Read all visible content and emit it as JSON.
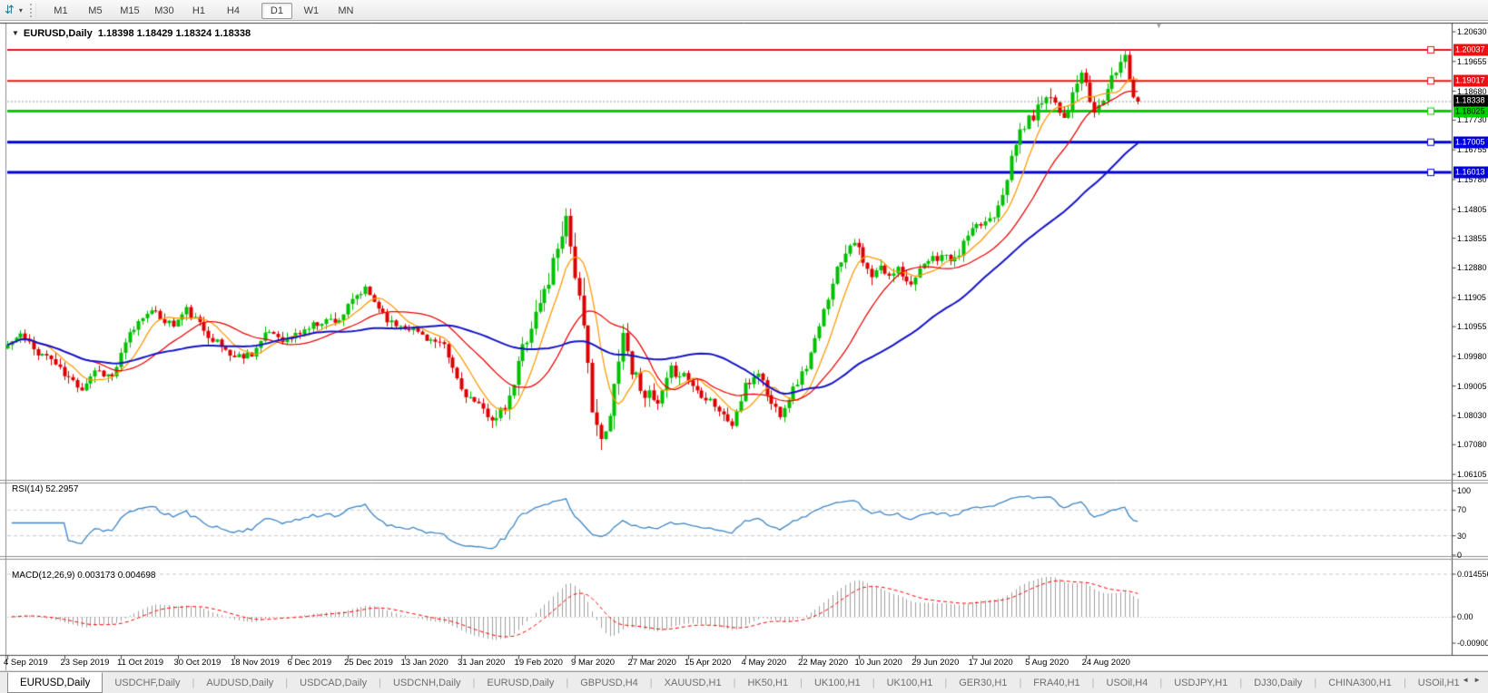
{
  "toolbar": {
    "timeframes": [
      "M1",
      "M5",
      "M15",
      "M30",
      "H1",
      "H4",
      "D1",
      "W1",
      "MN"
    ],
    "active_timeframe": "D1"
  },
  "icons": {
    "chart_tool": "⇵",
    "dropdown": "▾",
    "title_caret": "▼",
    "shift_marker": "▼",
    "tab_prev": "◄",
    "tab_next": "►"
  },
  "chart": {
    "title": "EURUSD,Daily",
    "ohlc": "1.18398 1.18429 1.18324 1.18338"
  },
  "price_axis": {
    "max": 1.2063,
    "min": 1.06105,
    "ticks": [
      "1.20630",
      "1.19655",
      "1.18680",
      "1.17730",
      "1.16755",
      "1.15780",
      "1.14805",
      "1.13855",
      "1.12880",
      "1.11905",
      "1.10955",
      "1.09980",
      "1.09005",
      "1.08030",
      "1.07080",
      "1.06105"
    ],
    "current_price": "1.18338",
    "current_price_bg": "#000000",
    "current_price_fg": "#ffffff"
  },
  "levels": [
    {
      "label": "1.20037",
      "price": 1.20037,
      "color": "#ee1111",
      "text_color": "#ffffff",
      "weight": 2
    },
    {
      "label": "1.19017",
      "price": 1.19017,
      "color": "#ee1111",
      "text_color": "#ffffff",
      "weight": 2
    },
    {
      "label": "1.18025",
      "price": 1.18025,
      "color": "#00d000",
      "text_color": "#000000",
      "weight": 3
    },
    {
      "label": "1.17005",
      "price": 1.17005,
      "color": "#0000dd",
      "text_color": "#ffffff",
      "weight": 3
    },
    {
      "label": "1.16013",
      "price": 1.16013,
      "color": "#0000dd",
      "text_color": "#ffffff",
      "weight": 3
    }
  ],
  "rsi_panel": {
    "label": "RSI(14) 52.2957",
    "period": 14,
    "value": 52.2957,
    "line_color": "#3d86c6",
    "ticks": [
      {
        "label": "100",
        "value": 100
      },
      {
        "label": "70",
        "value": 70
      },
      {
        "label": "30",
        "value": 30
      },
      {
        "label": "0",
        "value": 0
      }
    ],
    "dashed_levels": [
      70,
      30
    ]
  },
  "macd_panel": {
    "label": "MACD(12,26,9) 0.003173 0.004698",
    "fast": 12,
    "slow": 26,
    "signal": 9,
    "macd_value": 0.003173,
    "signal_value": 0.004698,
    "histogram_color": "#9f9f9f",
    "signal_color": "#ff0000",
    "ticks": [
      {
        "label": "0.014556",
        "value": 0.014556
      },
      {
        "label": "0.00",
        "value": 0
      },
      {
        "label": "-0.00900",
        "value": -0.009
      }
    ]
  },
  "dates": [
    "4 Sep 2019",
    "23 Sep 2019",
    "11 Oct 2019",
    "30 Oct 2019",
    "18 Nov 2019",
    "6 Dec 2019",
    "25 Dec 2019",
    "13 Jan 2020",
    "31 Jan 2020",
    "19 Feb 2020",
    "9 Mar 2020",
    "27 Mar 2020",
    "15 Apr 2020",
    "4 May 2020",
    "22 May 2020",
    "10 Jun 2020",
    "29 Jun 2020",
    "17 Jul 2020",
    "5 Aug 2020",
    "24 Aug 2020"
  ],
  "tabs": [
    {
      "label": "EURUSD,Daily",
      "active": true
    },
    {
      "label": "USDCHF,Daily",
      "active": false
    },
    {
      "label": "AUDUSD,Daily",
      "active": false
    },
    {
      "label": "USDCAD,Daily",
      "active": false
    },
    {
      "label": "USDCNH,Daily",
      "active": false
    },
    {
      "label": "EURUSD,Daily",
      "active": false
    },
    {
      "label": "GBPUSD,H4",
      "active": false
    },
    {
      "label": "XAUUSD,H1",
      "active": false
    },
    {
      "label": "HK50,H1",
      "active": false
    },
    {
      "label": "UK100,H1",
      "active": false
    },
    {
      "label": "UK100,H1",
      "active": false
    },
    {
      "label": "GER30,H1",
      "active": false
    },
    {
      "label": "FRA40,H1",
      "active": false
    },
    {
      "label": "USOil,H4",
      "active": false
    },
    {
      "label": "USDJPY,H1",
      "active": false
    },
    {
      "label": "DJ30,Daily",
      "active": false
    },
    {
      "label": "CHINA300,H1",
      "active": false
    },
    {
      "label": "USOil,H1",
      "active": false
    }
  ],
  "chart_data": {
    "type": "candlestick",
    "symbol": "EURUSD",
    "timeframe": "Daily",
    "current": {
      "open": 1.18398,
      "high": 1.18429,
      "low": 1.18324,
      "close": 1.18338
    },
    "bars": 260,
    "bars_per_date_tick": 13,
    "up_color": "#00c000",
    "down_color": "#dd0000",
    "moving_averages": [
      {
        "period": 8,
        "color": "#ff9900",
        "width": 1.25
      },
      {
        "period": 20,
        "color": "#ee0000",
        "width": 1.25
      },
      {
        "period": 45,
        "color": "#1414c8",
        "width": 2
      }
    ],
    "close_anchors": [
      [
        0,
        1.1035,
        1
      ],
      [
        3,
        1.107,
        1
      ],
      [
        6,
        1.102,
        1
      ],
      [
        10,
        1.099,
        1
      ],
      [
        13,
        1.0935,
        1
      ],
      [
        17,
        1.0895,
        1
      ],
      [
        20,
        1.0955,
        1
      ],
      [
        24,
        1.093,
        1
      ],
      [
        28,
        1.107,
        1
      ],
      [
        32,
        1.115,
        1
      ],
      [
        35,
        1.1125,
        1
      ],
      [
        38,
        1.11,
        1
      ],
      [
        41,
        1.115,
        1
      ],
      [
        45,
        1.1085,
        1
      ],
      [
        49,
        1.103,
        1
      ],
      [
        52,
        1.0995,
        1
      ],
      [
        56,
        1.101,
        1
      ],
      [
        60,
        1.108,
        1
      ],
      [
        64,
        1.105,
        1
      ],
      [
        68,
        1.1085,
        1
      ],
      [
        72,
        1.1115,
        1
      ],
      [
        76,
        1.112,
        1
      ],
      [
        80,
        1.1195,
        1
      ],
      [
        82,
        1.1215,
        1
      ],
      [
        85,
        1.116,
        1
      ],
      [
        88,
        1.1105,
        1
      ],
      [
        92,
        1.1095,
        1
      ],
      [
        96,
        1.106,
        1
      ],
      [
        100,
        1.1025,
        1
      ],
      [
        104,
        1.089,
        1
      ],
      [
        108,
        1.083,
        1
      ],
      [
        112,
        1.079,
        1.3
      ],
      [
        115,
        1.085,
        1.6
      ],
      [
        118,
        1.103,
        1.8
      ],
      [
        121,
        1.1135,
        2
      ],
      [
        124,
        1.125,
        2.2
      ],
      [
        127,
        1.142,
        2.5
      ],
      [
        128,
        1.1455,
        2.6
      ],
      [
        130,
        1.128,
        2.8
      ],
      [
        132,
        1.1065,
        2.8
      ],
      [
        134,
        1.085,
        2.6
      ],
      [
        136,
        1.0705,
        2.2
      ],
      [
        138,
        1.079,
        2.2
      ],
      [
        140,
        1.101,
        2.1
      ],
      [
        141,
        1.1075,
        2
      ],
      [
        143,
        1.0955,
        1.8
      ],
      [
        146,
        1.088,
        1.6
      ],
      [
        149,
        1.0835,
        1.4
      ],
      [
        152,
        1.095,
        1.3
      ],
      [
        155,
        1.094,
        1.2
      ],
      [
        158,
        1.0885,
        1.2
      ],
      [
        161,
        1.086,
        1.2
      ],
      [
        164,
        1.08,
        1.2
      ],
      [
        166,
        1.0775,
        1.2
      ],
      [
        169,
        1.0895,
        1.2
      ],
      [
        172,
        1.095,
        1.2
      ],
      [
        175,
        1.084,
        1.2
      ],
      [
        177,
        1.0815,
        1.2
      ],
      [
        180,
        1.089,
        1
      ],
      [
        183,
        1.0965,
        1
      ],
      [
        186,
        1.109,
        1
      ],
      [
        189,
        1.125,
        1.2
      ],
      [
        192,
        1.135,
        1.4
      ],
      [
        194,
        1.1385,
        1.3
      ],
      [
        196,
        1.13,
        1.2
      ],
      [
        198,
        1.1255,
        1.2
      ],
      [
        200,
        1.129,
        1
      ],
      [
        202,
        1.1255,
        1
      ],
      [
        204,
        1.13,
        1
      ],
      [
        206,
        1.124,
        1
      ],
      [
        208,
        1.1255,
        1
      ],
      [
        211,
        1.131,
        1
      ],
      [
        214,
        1.133,
        1
      ],
      [
        217,
        1.131,
        1
      ],
      [
        220,
        1.1395,
        1
      ],
      [
        223,
        1.143,
        1
      ],
      [
        226,
        1.1465,
        1
      ],
      [
        228,
        1.154,
        1.1
      ],
      [
        230,
        1.164,
        1.3
      ],
      [
        232,
        1.174,
        1.4
      ],
      [
        234,
        1.177,
        1.5
      ],
      [
        236,
        1.181,
        1.5
      ],
      [
        238,
        1.1865,
        1.4
      ],
      [
        240,
        1.1835,
        1.3
      ],
      [
        242,
        1.1785,
        1.3
      ],
      [
        244,
        1.185,
        1.3
      ],
      [
        246,
        1.193,
        1.3
      ],
      [
        247,
        1.188,
        1.2
      ],
      [
        249,
        1.1795,
        1.2
      ],
      [
        251,
        1.1845,
        1.2
      ],
      [
        253,
        1.1905,
        1.2
      ],
      [
        255,
        1.1965,
        1.2
      ],
      [
        256,
        1.199,
        1.1
      ],
      [
        257,
        1.1915,
        1
      ],
      [
        258,
        1.1855,
        1
      ],
      [
        259,
        1.18338,
        0.8
      ]
    ]
  }
}
